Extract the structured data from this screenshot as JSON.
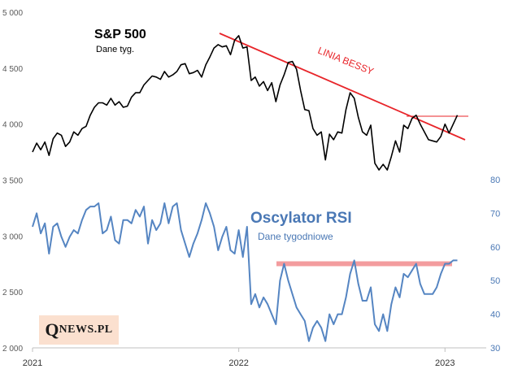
{
  "chart_data": [
    {
      "type": "line",
      "title": "S&P 500",
      "subtitle": "Dane tyg.",
      "axis": "left",
      "ylim": [
        2000,
        5000
      ],
      "yticks": [
        2000,
        2500,
        3000,
        3500,
        4000,
        4500,
        5000
      ],
      "ytick_labels": [
        "2 000",
        "2 500",
        "3 000",
        "3 500",
        "4 000",
        "4 500",
        "5 000"
      ],
      "x": [
        2021.0,
        2021.02,
        2021.04,
        2021.06,
        2021.08,
        2021.1,
        2021.12,
        2021.14,
        2021.16,
        2021.18,
        2021.2,
        2021.22,
        2021.24,
        2021.26,
        2021.28,
        2021.3,
        2021.32,
        2021.34,
        2021.36,
        2021.38,
        2021.4,
        2021.42,
        2021.44,
        2021.46,
        2021.48,
        2021.5,
        2021.52,
        2021.54,
        2021.56,
        2021.58,
        2021.6,
        2021.62,
        2021.64,
        2021.66,
        2021.68,
        2021.7,
        2021.72,
        2021.74,
        2021.76,
        2021.78,
        2021.8,
        2021.82,
        2021.84,
        2021.86,
        2021.88,
        2021.9,
        2021.92,
        2021.94,
        2021.96,
        2021.98,
        2022.0,
        2022.02,
        2022.04,
        2022.06,
        2022.08,
        2022.1,
        2022.12,
        2022.14,
        2022.16,
        2022.18,
        2022.2,
        2022.22,
        2022.24,
        2022.26,
        2022.28,
        2022.3,
        2022.32,
        2022.34,
        2022.36,
        2022.38,
        2022.4,
        2022.42,
        2022.44,
        2022.46,
        2022.48,
        2022.5,
        2022.52,
        2022.54,
        2022.56,
        2022.58,
        2022.6,
        2022.62,
        2022.64,
        2022.66,
        2022.68,
        2022.7,
        2022.72,
        2022.74,
        2022.76,
        2022.78,
        2022.8,
        2022.82,
        2022.84,
        2022.86,
        2022.88,
        2022.9,
        2022.92,
        2022.94,
        2022.96,
        2022.98,
        2023.0,
        2023.02,
        2023.04,
        2023.06
      ],
      "values": [
        3750,
        3830,
        3770,
        3840,
        3720,
        3870,
        3920,
        3900,
        3800,
        3840,
        3930,
        3900,
        3960,
        3980,
        4080,
        4150,
        4190,
        4190,
        4170,
        4230,
        4170,
        4200,
        4150,
        4160,
        4240,
        4280,
        4280,
        4350,
        4390,
        4430,
        4420,
        4400,
        4470,
        4420,
        4440,
        4470,
        4530,
        4540,
        4450,
        4460,
        4480,
        4420,
        4530,
        4600,
        4680,
        4710,
        4690,
        4700,
        4620,
        4750,
        4790,
        4680,
        4690,
        4390,
        4420,
        4340,
        4380,
        4300,
        4370,
        4200,
        4350,
        4440,
        4550,
        4560,
        4490,
        4300,
        4130,
        4120,
        3960,
        3900,
        3930,
        3680,
        3910,
        3860,
        3930,
        3920,
        4130,
        4280,
        4230,
        4060,
        3930,
        3900,
        3990,
        3650,
        3590,
        3640,
        3590,
        3710,
        3850,
        3750,
        3990,
        3960,
        4050,
        4080,
        4000,
        3930,
        3860,
        3850,
        3840,
        3890,
        4000,
        3920,
        4000,
        4080
      ],
      "annotation_line_label": "LINIA BESSY"
    },
    {
      "type": "line",
      "title": "Oscylator RSI",
      "subtitle": "Dane tygodniowe",
      "axis": "right",
      "ylim": [
        30,
        80
      ],
      "yticks": [
        30,
        40,
        50,
        60,
        70,
        80
      ],
      "x": [
        2021.0,
        2021.02,
        2021.04,
        2021.06,
        2021.08,
        2021.1,
        2021.12,
        2021.14,
        2021.16,
        2021.18,
        2021.2,
        2021.22,
        2021.24,
        2021.26,
        2021.28,
        2021.3,
        2021.32,
        2021.34,
        2021.36,
        2021.38,
        2021.4,
        2021.42,
        2021.44,
        2021.46,
        2021.48,
        2021.5,
        2021.52,
        2021.54,
        2021.56,
        2021.58,
        2021.6,
        2021.62,
        2021.64,
        2021.66,
        2021.68,
        2021.7,
        2021.72,
        2021.74,
        2021.76,
        2021.78,
        2021.8,
        2021.82,
        2021.84,
        2021.86,
        2021.88,
        2021.9,
        2021.92,
        2021.94,
        2021.96,
        2021.98,
        2022.0,
        2022.02,
        2022.04,
        2022.06,
        2022.08,
        2022.1,
        2022.12,
        2022.14,
        2022.16,
        2022.18,
        2022.2,
        2022.22,
        2022.24,
        2022.26,
        2022.28,
        2022.3,
        2022.32,
        2022.34,
        2022.36,
        2022.38,
        2022.4,
        2022.42,
        2022.44,
        2022.46,
        2022.48,
        2022.5,
        2022.52,
        2022.54,
        2022.56,
        2022.58,
        2022.6,
        2022.62,
        2022.64,
        2022.66,
        2022.68,
        2022.7,
        2022.72,
        2022.74,
        2022.76,
        2022.78,
        2022.8,
        2022.82,
        2022.84,
        2022.86,
        2022.88,
        2022.9,
        2022.92,
        2022.94,
        2022.96,
        2022.98,
        2023.0,
        2023.02,
        2023.04,
        2023.06
      ],
      "values": [
        66,
        70,
        64,
        67,
        58,
        66,
        67,
        63,
        60,
        63,
        65,
        64,
        68,
        71,
        72,
        72,
        73,
        64,
        65,
        69,
        62,
        61,
        68,
        68,
        67,
        71,
        69,
        72,
        61,
        68,
        65,
        67,
        73,
        67,
        72,
        73,
        65,
        61,
        57,
        61,
        64,
        68,
        73,
        70,
        66,
        59,
        63,
        66,
        59,
        58,
        65,
        57,
        66,
        43,
        46,
        42,
        45,
        43,
        40,
        37,
        50,
        55,
        50,
        46,
        42,
        40,
        38,
        32,
        36,
        38,
        36,
        32,
        40,
        37,
        40,
        40,
        45,
        52,
        56,
        49,
        44,
        44,
        48,
        37,
        35,
        40,
        35,
        43,
        48,
        45,
        52,
        51,
        53,
        55,
        49,
        46,
        46,
        46,
        48,
        52,
        55,
        55,
        56,
        56
      ],
      "resistance_level": 55
    }
  ],
  "x_axis": {
    "ticks": [
      2021,
      2022,
      2023
    ],
    "tick_labels": [
      "2021",
      "2022",
      "2023"
    ],
    "range": [
      2021.0,
      2023.2
    ]
  },
  "logo": {
    "q": "Q",
    "rest": "NEWS.PL"
  },
  "colors": {
    "spx_line": "#000000",
    "rsi_line": "#5585c2",
    "bear_line": "#e8252a",
    "resistance_band": "#f39c9e",
    "logo_bg": "#fbe0cf"
  }
}
